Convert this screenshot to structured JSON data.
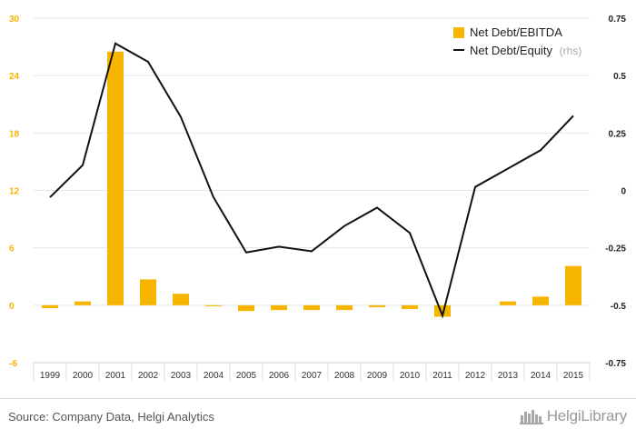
{
  "chart_data": {
    "type": "bar+line",
    "categories": [
      "1999",
      "2000",
      "2001",
      "2002",
      "2003",
      "2004",
      "2005",
      "2006",
      "2007",
      "2008",
      "2009",
      "2010",
      "2011",
      "2012",
      "2013",
      "2014",
      "2015"
    ],
    "series": [
      {
        "name": "Net Debt/EBITDA",
        "type": "bar",
        "axis": "left",
        "values": [
          -0.3,
          0.4,
          26.5,
          2.7,
          1.2,
          -0.1,
          -0.6,
          -0.5,
          -0.5,
          -0.5,
          -0.2,
          -0.4,
          -1.2,
          null,
          0.4,
          0.9,
          4.1
        ]
      },
      {
        "name": "Net Debt/Equity",
        "suffix": "(rhs)",
        "type": "line",
        "axis": "right",
        "values": [
          -0.03,
          0.11,
          0.64,
          0.56,
          0.32,
          -0.03,
          -0.27,
          -0.245,
          -0.265,
          -0.155,
          -0.075,
          -0.185,
          -0.545,
          0.015,
          0.095,
          0.175,
          0.325
        ]
      }
    ],
    "y_left": {
      "ylim": [
        -6,
        30
      ],
      "ticks": [
        "-6",
        "0",
        "6",
        "12",
        "18",
        "24",
        "30"
      ]
    },
    "y_right": {
      "ylim": [
        -0.75,
        0.75
      ],
      "ticks": [
        "-0.75",
        "-0.5",
        "-0.25",
        "0",
        "0.25",
        "0.5",
        "0.75"
      ]
    },
    "grid": true,
    "legend_position": "top-right",
    "colors": {
      "bar": "#f7b500",
      "line": "#111111",
      "grid": "#e6e6e6",
      "left_ticks": "#f7b500"
    }
  },
  "footer": {
    "source": "Source: Company Data, Helgi Analytics",
    "brand": "HelgiLibrary",
    "brand_icon": "library-skyline-icon"
  }
}
